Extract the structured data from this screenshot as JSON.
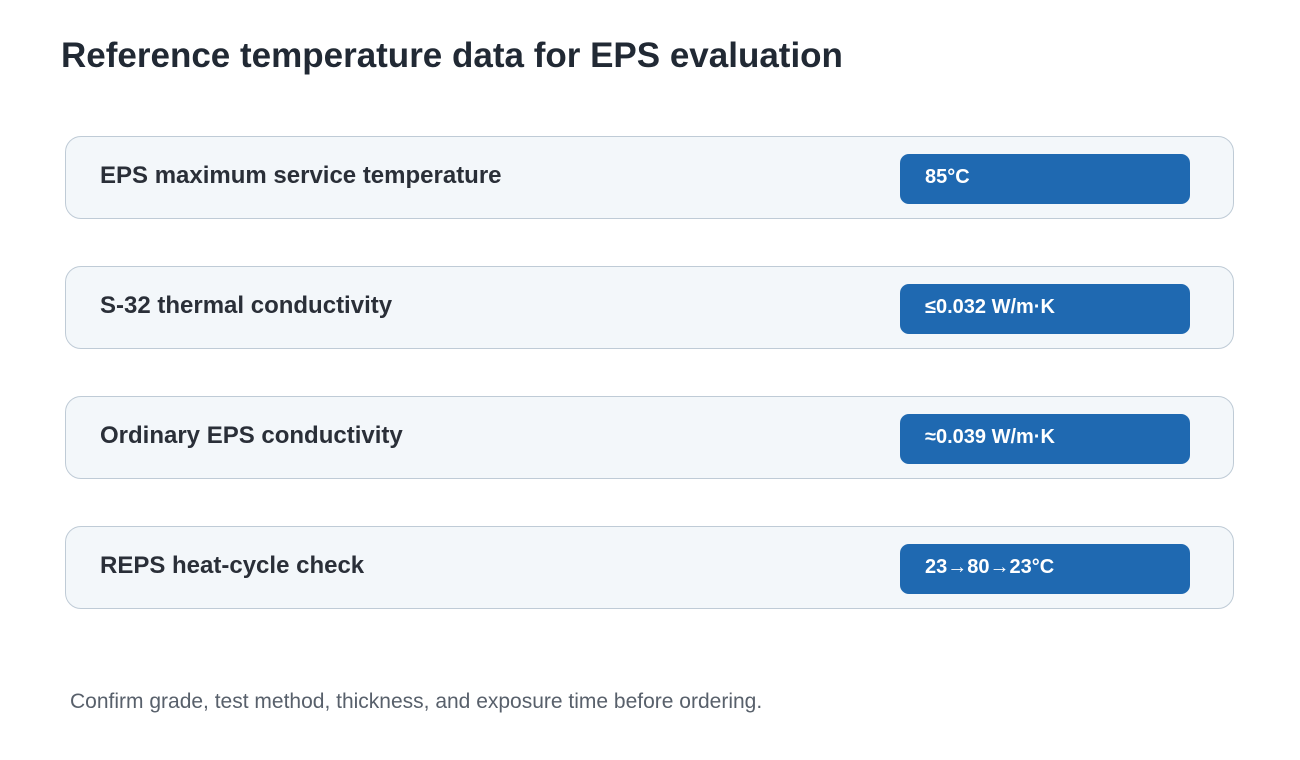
{
  "header": {
    "title": "Reference temperature data for EPS evaluation"
  },
  "rows": [
    {
      "label": "EPS maximum service temperature",
      "value": "85°C"
    },
    {
      "label": "S-32 thermal conductivity",
      "value": "≤0.032 W/m·K"
    },
    {
      "label": "Ordinary EPS conductivity",
      "value": "≈0.039 W/m·K"
    },
    {
      "label": "REPS heat-cycle check",
      "value": "23→80→23°C"
    }
  ],
  "footer": {
    "note": "Confirm grade, test method, thickness, and exposure time before ordering."
  }
}
